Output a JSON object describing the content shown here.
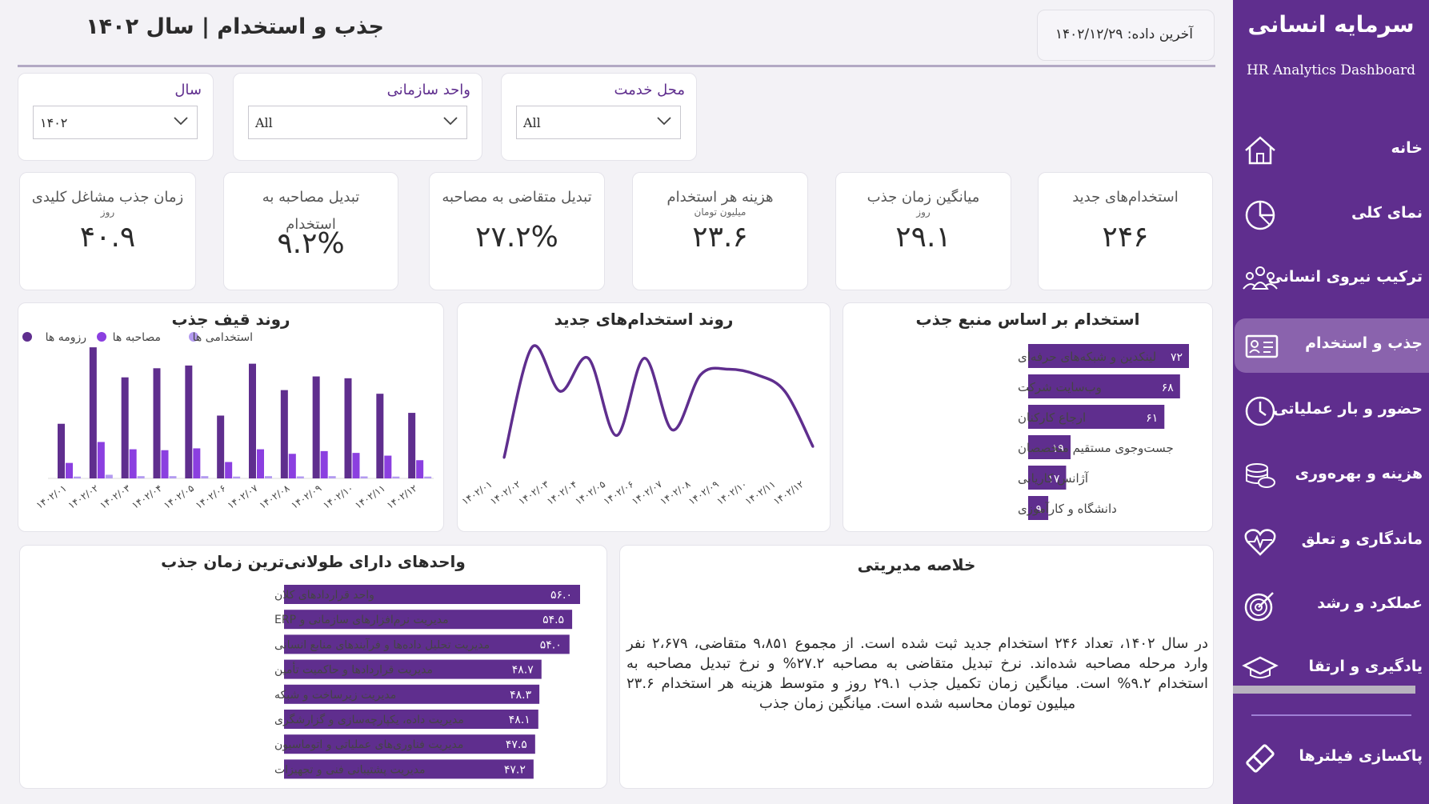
{
  "sidebar": {
    "title": "سرمایه انسانی",
    "subtitle": "HR Analytics Dashboard",
    "items": [
      {
        "label": "خانه",
        "icon": "home-icon"
      },
      {
        "label": "نمای کلی",
        "icon": "pie-chart-icon"
      },
      {
        "label": "ترکیب نیروی انسانی",
        "icon": "users-group-icon"
      },
      {
        "label": "جذب و استخدام",
        "icon": "id-card-icon"
      },
      {
        "label": "حضور و بار عملیاتی",
        "icon": "clock-icon"
      },
      {
        "label": "هزینه و بهره‌وری",
        "icon": "coins-icon"
      },
      {
        "label": "ماندگاری و تعلق",
        "icon": "heart-pulse-icon"
      },
      {
        "label": "عملکرد و رشد",
        "icon": "target-icon"
      },
      {
        "label": "یادگیری و ارتقا",
        "icon": "graduation-cap-icon"
      }
    ],
    "active_index": 3,
    "clear_filters": "پاکسازی فیلترها"
  },
  "header": {
    "title": "جذب و استخدام | سال ۱۴۰۲",
    "last_data": "آخرین داده: ۱۴۰۲/۱۲/۲۹"
  },
  "filters": {
    "year": {
      "label": "سال",
      "value": "۱۴۰۲"
    },
    "unit": {
      "label": "واحد سازمانی",
      "value": "All"
    },
    "location": {
      "label": "محل خدمت",
      "value": "All"
    }
  },
  "kpis": [
    {
      "title": "استخدام‌های جدید",
      "sub": "",
      "value": "۲۴۶"
    },
    {
      "title": "میانگین زمان جذب",
      "sub": "روز",
      "value": "۲۹.۱"
    },
    {
      "title": "هزینه هر استخدام",
      "sub": "میلیون تومان",
      "value": "۲۳.۶"
    },
    {
      "title": "تبدیل متقاضی به مصاحبه",
      "sub": "",
      "value": "۲۷.۲%"
    },
    {
      "title": "تبدیل مصاحبه به استخدام",
      "sub": "",
      "value": "۹.۲%"
    },
    {
      "title": "زمان جذب مشاغل کلیدی",
      "sub": "روز",
      "value": "۴۰.۹"
    }
  ],
  "colors": {
    "sidebar": "#5f2e8e",
    "dark": "#5f2e8e",
    "mid": "#8b3fe0",
    "light": "#b39af0"
  },
  "funnel": {
    "title": "روند قیف جذب",
    "legend": [
      "رزومه ها",
      "مصاحبه ها",
      "استخدامی ها"
    ],
    "chart_data": {
      "type": "bar",
      "categories": [
        "۱۴۰۲/۰۱",
        "۱۴۰۲/۰۲",
        "۱۴۰۲/۰۳",
        "۱۴۰۲/۰۴",
        "۱۴۰۲/۰۵",
        "۱۴۰۲/۰۶",
        "۱۴۰۲/۰۷",
        "۱۴۰۲/۰۸",
        "۱۴۰۲/۰۹",
        "۱۴۰۲/۱۰",
        "۱۴۰۲/۱۱",
        "۱۴۰۲/۱۲"
      ],
      "series": [
        {
          "name": "رزومه ها",
          "values": [
            600,
            1440,
            1110,
            1210,
            1240,
            690,
            1260,
            970,
            1120,
            1100,
            930,
            720
          ]
        },
        {
          "name": "مصاحبه ها",
          "values": [
            170,
            400,
            320,
            310,
            330,
            180,
            320,
            270,
            300,
            280,
            250,
            200
          ]
        },
        {
          "name": "استخدامی ها",
          "values": [
            20,
            40,
            25,
            25,
            25,
            20,
            25,
            22,
            25,
            22,
            20,
            20
          ]
        }
      ]
    }
  },
  "hires_trend": {
    "title": "روند استخدام‌های جدید",
    "chart_data": {
      "type": "line",
      "categories": [
        "۱۴۰۲/۰۱",
        "۱۴۰۲/۰۲",
        "۱۴۰۲/۰۳",
        "۱۴۰۲/۰۴",
        "۱۴۰۲/۰۵",
        "۱۴۰۲/۰۶",
        "۱۴۰۲/۰۷",
        "۱۴۰۲/۰۸",
        "۱۴۰۲/۰۹",
        "۱۴۰۲/۱۰",
        "۱۴۰۲/۱۱",
        "۱۴۰۲/۱۲"
      ],
      "values": [
        10,
        30,
        22,
        28,
        14,
        28,
        15,
        25,
        26,
        25,
        22,
        12
      ]
    }
  },
  "sources": {
    "title": "استخدام بر اساس منبع جذب",
    "chart_data": {
      "type": "bar",
      "categories": [
        "لینکدین و شبکه‌های حرفه‌ای",
        "وب‌سایت شرکت",
        "ارجاع کارکنان",
        "جست‌وجوی مستقیم متخصصان",
        "آژانس کاریابی",
        "دانشگاه و کارآموزی"
      ],
      "values": [
        72,
        68,
        61,
        19,
        17,
        9
      ],
      "labels": [
        "۷۲",
        "۶۸",
        "۶۱",
        "۱۹",
        "۱۷",
        "۹"
      ]
    }
  },
  "units": {
    "title": "واحدهای دارای طولانی‌ترین زمان جذب",
    "chart_data": {
      "type": "bar",
      "categories": [
        "واحد قراردادهای کلان",
        "مدیریت نرم‌افزارهای سازمانی و ERP",
        "مدیریت تحلیل داده‌ها و فرآیندهای منابع انسانی",
        "مدیریت قراردادها و حاکمیت تأمین",
        "مدیریت زیرساخت و شبکه",
        "مدیریت داده، یکپارچه‌سازی و گزارشگری",
        "مدیریت فناوری‌های عملیاتی و اتوماسیون",
        "مدیریت پشتیبانی فنی و تجهیزات"
      ],
      "values": [
        56.0,
        54.5,
        54.0,
        48.7,
        48.3,
        48.1,
        47.5,
        47.2
      ],
      "labels": [
        "۵۶.۰",
        "۵۴.۵",
        "۵۴.۰",
        "۴۸.۷",
        "۴۸.۳",
        "۴۸.۱",
        "۴۷.۵",
        "۴۷.۲"
      ]
    }
  },
  "summary": {
    "title": "خلاصه مدیریتی",
    "text": "در سال ۱۴۰۲، تعداد ۲۴۶ استخدام جدید ثبت شده است. از مجموع ۹،۸۵۱ متقاضی، ۲،۶۷۹ نفر وارد مرحله مصاحبه شده‌اند. نرخ تبدیل متقاضی به مصاحبه ۲۷.۲% و نرخ تبدیل مصاحبه به استخدام ۹.۲% است. میانگین زمان تکمیل جذب ۲۹.۱ روز و متوسط هزینه هر استخدام ۲۳.۶ میلیون تومان محاسبه شده است. میانگین زمان جذب"
  }
}
